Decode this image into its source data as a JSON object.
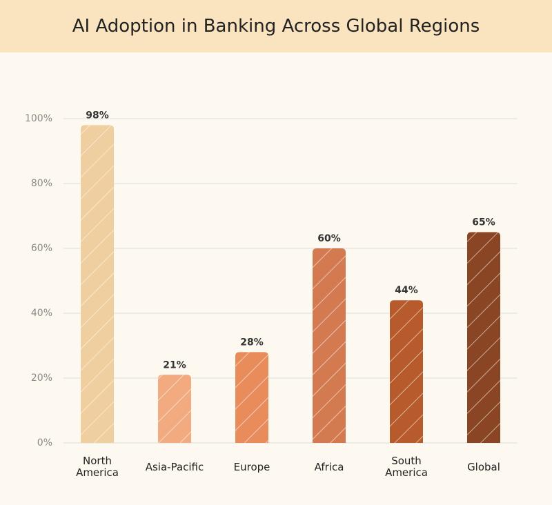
{
  "chart_data": {
    "type": "bar",
    "title": "AI Adoption in Banking Across Global Regions",
    "categories": [
      "North America",
      "Asia-Pacific",
      "Europe",
      "Africa",
      "South America",
      "Global"
    ],
    "values": [
      98,
      21,
      28,
      60,
      44,
      65
    ],
    "value_labels": [
      "98%",
      "21%",
      "28%",
      "60%",
      "44%",
      "65%"
    ],
    "colors": [
      "#efcf9f",
      "#f2ab80",
      "#e98c5c",
      "#d47a50",
      "#b75b2c",
      "#8a4524"
    ],
    "ylim": [
      0,
      100
    ],
    "yticks": [
      {
        "value": 0,
        "label": "0%"
      },
      {
        "value": 20,
        "label": "20%"
      },
      {
        "value": 40,
        "label": "40%"
      },
      {
        "value": 60,
        "label": "60%"
      },
      {
        "value": 80,
        "label": "80%"
      },
      {
        "value": 100,
        "label": "100%"
      }
    ],
    "grid": true
  }
}
